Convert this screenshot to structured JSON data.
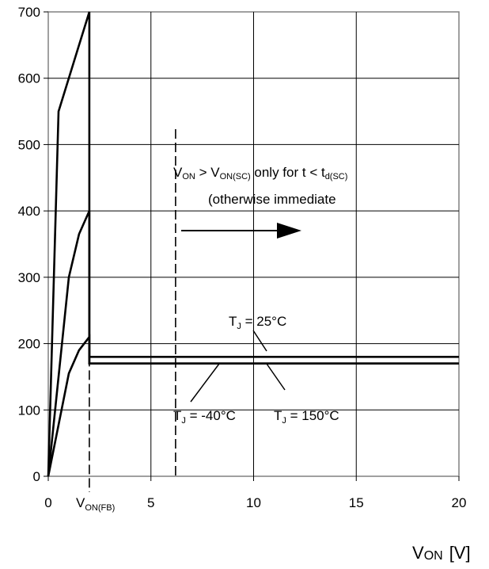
{
  "chart_data": {
    "type": "line",
    "title": "",
    "xlabel": "V_ON [V]",
    "ylabel": "",
    "xlim": [
      0,
      20
    ],
    "ylim": [
      0,
      700
    ],
    "grid": true,
    "x_ticks": [
      "0",
      "5",
      "10",
      "15",
      "20"
    ],
    "y_ticks": [
      "0",
      "100",
      "200",
      "300",
      "400",
      "500",
      "600",
      "700"
    ],
    "x_marker": {
      "x": 2,
      "label": "V",
      "label_sub": "ON(FB)"
    },
    "xlabel_parts": {
      "main": "V",
      "sub": "ON",
      "unit": "[V]"
    },
    "dashed_vline_x": 6.2,
    "series": [
      {
        "points": [
          [
            0,
            0
          ],
          [
            0.5,
            550
          ],
          [
            1.5,
            650
          ],
          [
            2,
            700
          ],
          [
            2,
            180
          ],
          [
            20,
            180
          ]
        ]
      },
      {
        "points": [
          [
            0,
            0
          ],
          [
            1,
            300
          ],
          [
            1.5,
            365
          ],
          [
            2,
            400
          ],
          [
            2,
            170
          ],
          [
            20,
            170
          ]
        ]
      },
      {
        "points": [
          [
            0,
            0
          ],
          [
            1,
            155
          ],
          [
            1.5,
            190
          ],
          [
            2,
            210
          ],
          [
            2,
            170
          ],
          [
            20,
            170
          ]
        ]
      }
    ],
    "annotations": {
      "sc_line1": {
        "v": "V",
        "on": "ON",
        "gt": " > V",
        "on_sc": "ON(SC)",
        "rest": " only for t <  t",
        "d_sc": "d(SC)"
      },
      "sc_line2": "(otherwise immediate",
      "tj_25": {
        "t": "T",
        "j": "J",
        "rest": " = 25°C"
      },
      "tj_m40": {
        "t": "T",
        "j": "J",
        "rest": " = -40°C"
      },
      "tj_150": {
        "t": "T",
        "j": "J",
        "rest": " = 150°C"
      }
    }
  }
}
